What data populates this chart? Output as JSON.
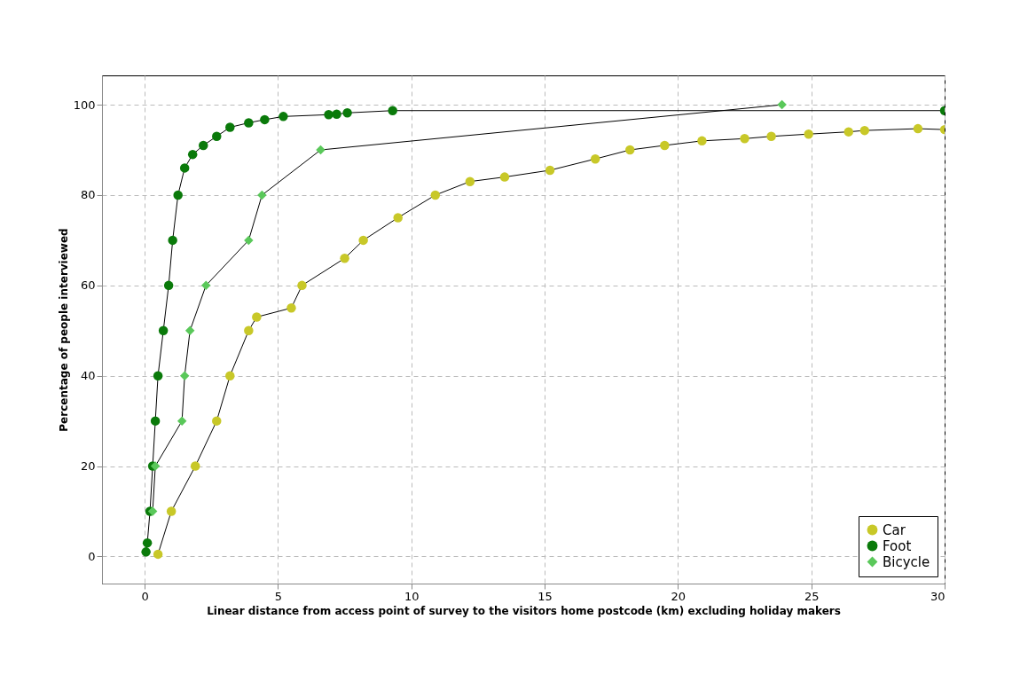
{
  "chart_data": {
    "type": "line",
    "xlabel": "Linear distance from access point of survey to the visitors home postcode (km) excluding holiday makers",
    "ylabel": "Percentage of people interviewed",
    "xlim": [
      -1.6,
      30
    ],
    "ylim": [
      -6,
      106.5
    ],
    "xticks": [
      0,
      5,
      10,
      15,
      20,
      25,
      30
    ],
    "yticks": [
      0,
      20,
      40,
      60,
      80,
      100
    ],
    "grid": true,
    "legend": "bottom right",
    "line_style": "solid",
    "series": [
      {
        "name": "Car",
        "color": "#c8c828",
        "marker": "circle",
        "x": [
          0.5,
          1.0,
          1.9,
          2.7,
          3.2,
          3.9,
          4.2,
          5.5,
          5.9,
          7.5,
          8.2,
          9.5,
          10.9,
          12.2,
          13.5,
          15.2,
          16.9,
          18.2,
          19.5,
          20.9,
          22.5,
          23.5,
          24.9,
          26.4,
          27,
          29,
          30
        ],
        "values": [
          0.5,
          10,
          20,
          30,
          40,
          50,
          53,
          55,
          60,
          66,
          70,
          75,
          80,
          83,
          84,
          85.5,
          88,
          90,
          91,
          92,
          92.5,
          93,
          93.5,
          94,
          94.3,
          94.7,
          94.5
        ]
      },
      {
        "name": "Foot",
        "color": "#0a7a0a",
        "marker": "circle",
        "x": [
          0.05,
          0.1,
          0.2,
          0.3,
          0.4,
          0.5,
          0.7,
          0.9,
          1.05,
          1.25,
          1.5,
          1.8,
          2.2,
          2.7,
          3.2,
          3.9,
          4.5,
          5.2,
          6.9,
          7.2,
          7.6,
          9.3,
          30
        ],
        "values": [
          1,
          3,
          10,
          20,
          30,
          40,
          50,
          60,
          70,
          80,
          86,
          89,
          91,
          93,
          95,
          96,
          96.7,
          97.4,
          97.8,
          97.9,
          98.2,
          98.7,
          98.7
        ]
      },
      {
        "name": "Bicycle",
        "color": "#5ac85a",
        "marker": "diamond",
        "x": [
          0.3,
          0.4,
          1.4,
          1.5,
          1.7,
          2.3,
          3.9,
          4.4,
          6.6,
          23.9
        ],
        "values": [
          10,
          20,
          30,
          40,
          50,
          60,
          70,
          80,
          90,
          100
        ]
      }
    ]
  }
}
